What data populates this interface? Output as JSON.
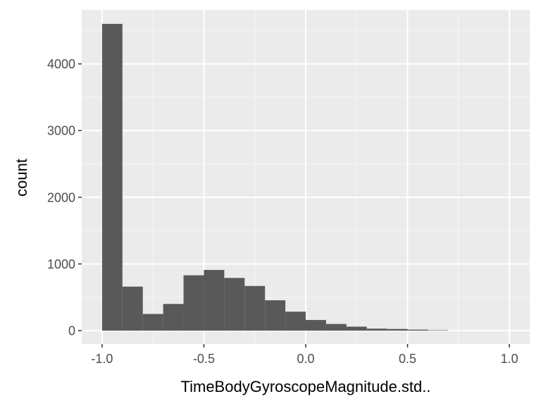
{
  "chart_data": {
    "type": "bar",
    "title": "",
    "xlabel": "TimeBodyGyroscopeMagnitude.std..",
    "ylabel": "count",
    "xlim": [
      -1.1,
      1.1
    ],
    "ylim": [
      -200,
      4810
    ],
    "x_ticks": [
      -1.0,
      -0.5,
      0.0,
      0.5,
      1.0
    ],
    "x_tick_labels": [
      "-1.0",
      "-0.5",
      "0.0",
      "0.5",
      "1.0"
    ],
    "y_ticks": [
      0,
      1000,
      2000,
      3000,
      4000
    ],
    "y_tick_labels": [
      "0",
      "1000",
      "2000",
      "3000",
      "4000"
    ],
    "bin_width": 0.1,
    "bins": [
      {
        "x0": -1.0,
        "x1": -0.9,
        "count": 4600
      },
      {
        "x0": -0.9,
        "x1": -0.8,
        "count": 660
      },
      {
        "x0": -0.8,
        "x1": -0.7,
        "count": 250
      },
      {
        "x0": -0.7,
        "x1": -0.6,
        "count": 400
      },
      {
        "x0": -0.6,
        "x1": -0.5,
        "count": 830
      },
      {
        "x0": -0.5,
        "x1": -0.4,
        "count": 910
      },
      {
        "x0": -0.4,
        "x1": -0.3,
        "count": 790
      },
      {
        "x0": -0.3,
        "x1": -0.2,
        "count": 670
      },
      {
        "x0": -0.2,
        "x1": -0.1,
        "count": 455
      },
      {
        "x0": -0.1,
        "x1": 0.0,
        "count": 285
      },
      {
        "x0": 0.0,
        "x1": 0.1,
        "count": 160
      },
      {
        "x0": 0.1,
        "x1": 0.2,
        "count": 100
      },
      {
        "x0": 0.2,
        "x1": 0.3,
        "count": 60
      },
      {
        "x0": 0.3,
        "x1": 0.4,
        "count": 30
      },
      {
        "x0": 0.4,
        "x1": 0.5,
        "count": 25
      },
      {
        "x0": 0.5,
        "x1": 0.6,
        "count": 15
      },
      {
        "x0": 0.6,
        "x1": 0.7,
        "count": 6
      }
    ],
    "grid": true,
    "colors": {
      "panel_background": "#ebebeb",
      "grid_major": "#ffffff",
      "grid_minor": "#f5f5f5",
      "bar_fill": "#595959",
      "tick_mark": "#333333",
      "tick_label": "#4d4d4d"
    }
  }
}
